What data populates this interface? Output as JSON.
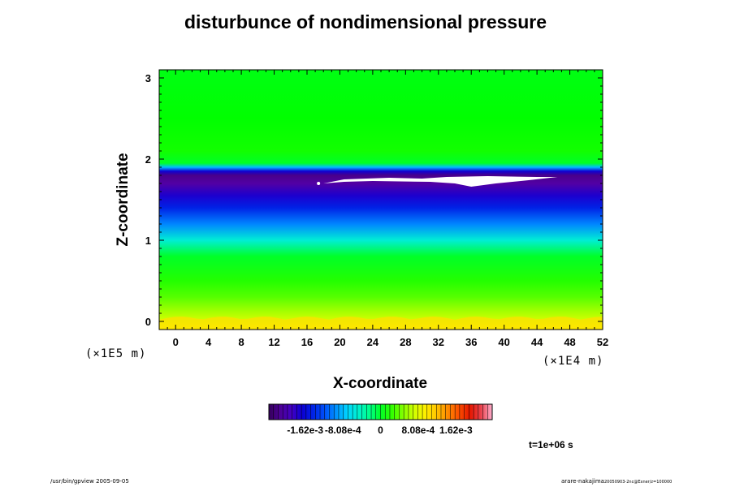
{
  "chart_data": {
    "type": "heatmap",
    "title": "disturbunce of nondimensional pressure",
    "xlabel": "X-coordinate",
    "ylabel": "Z-coordinate",
    "x_unit": "(×1E4 m)",
    "y_unit": "(×1E5 m)",
    "xlim": [
      -2,
      52
    ],
    "ylim": [
      -0.1,
      3.1
    ],
    "x_ticks": [
      "0",
      "4",
      "8",
      "12",
      "16",
      "20",
      "24",
      "28",
      "32",
      "36",
      "40",
      "44",
      "48",
      "52"
    ],
    "y_ticks": [
      "0",
      "1",
      "2",
      "3"
    ],
    "colorbar": {
      "labels": [
        "-1.62e-3",
        "-8.08e-4",
        "0",
        "8.08e-4",
        "1.62e-3"
      ],
      "min": -0.0024,
      "max": 0.0024
    },
    "profile_z": [
      -0.1,
      0.05,
      0.15,
      0.3,
      0.5,
      0.8,
      1.0,
      1.2,
      1.4,
      1.55,
      1.7,
      1.8,
      1.85,
      1.9,
      1.95,
      2.1,
      2.5,
      3.1
    ],
    "profile_value": [
      0.00085,
      0.00068,
      0.00055,
      0.00035,
      0.0002,
      0.0,
      -0.0005,
      -0.001,
      -0.00145,
      -0.00175,
      -0.0021,
      -0.0022,
      -0.0017,
      -0.0008,
      0.0,
      0.00015,
      0.0001,
      5e-05
    ],
    "annotation": "t=1e+06 s"
  },
  "footer": {
    "left": "/usr/bin/gpview 2005-09-05",
    "right": "arare-nakajima",
    "right_small": "20050903-2nc@Exner/z=100000"
  },
  "colors": {
    "background": "#ffffff",
    "missing": "#ffffff"
  }
}
